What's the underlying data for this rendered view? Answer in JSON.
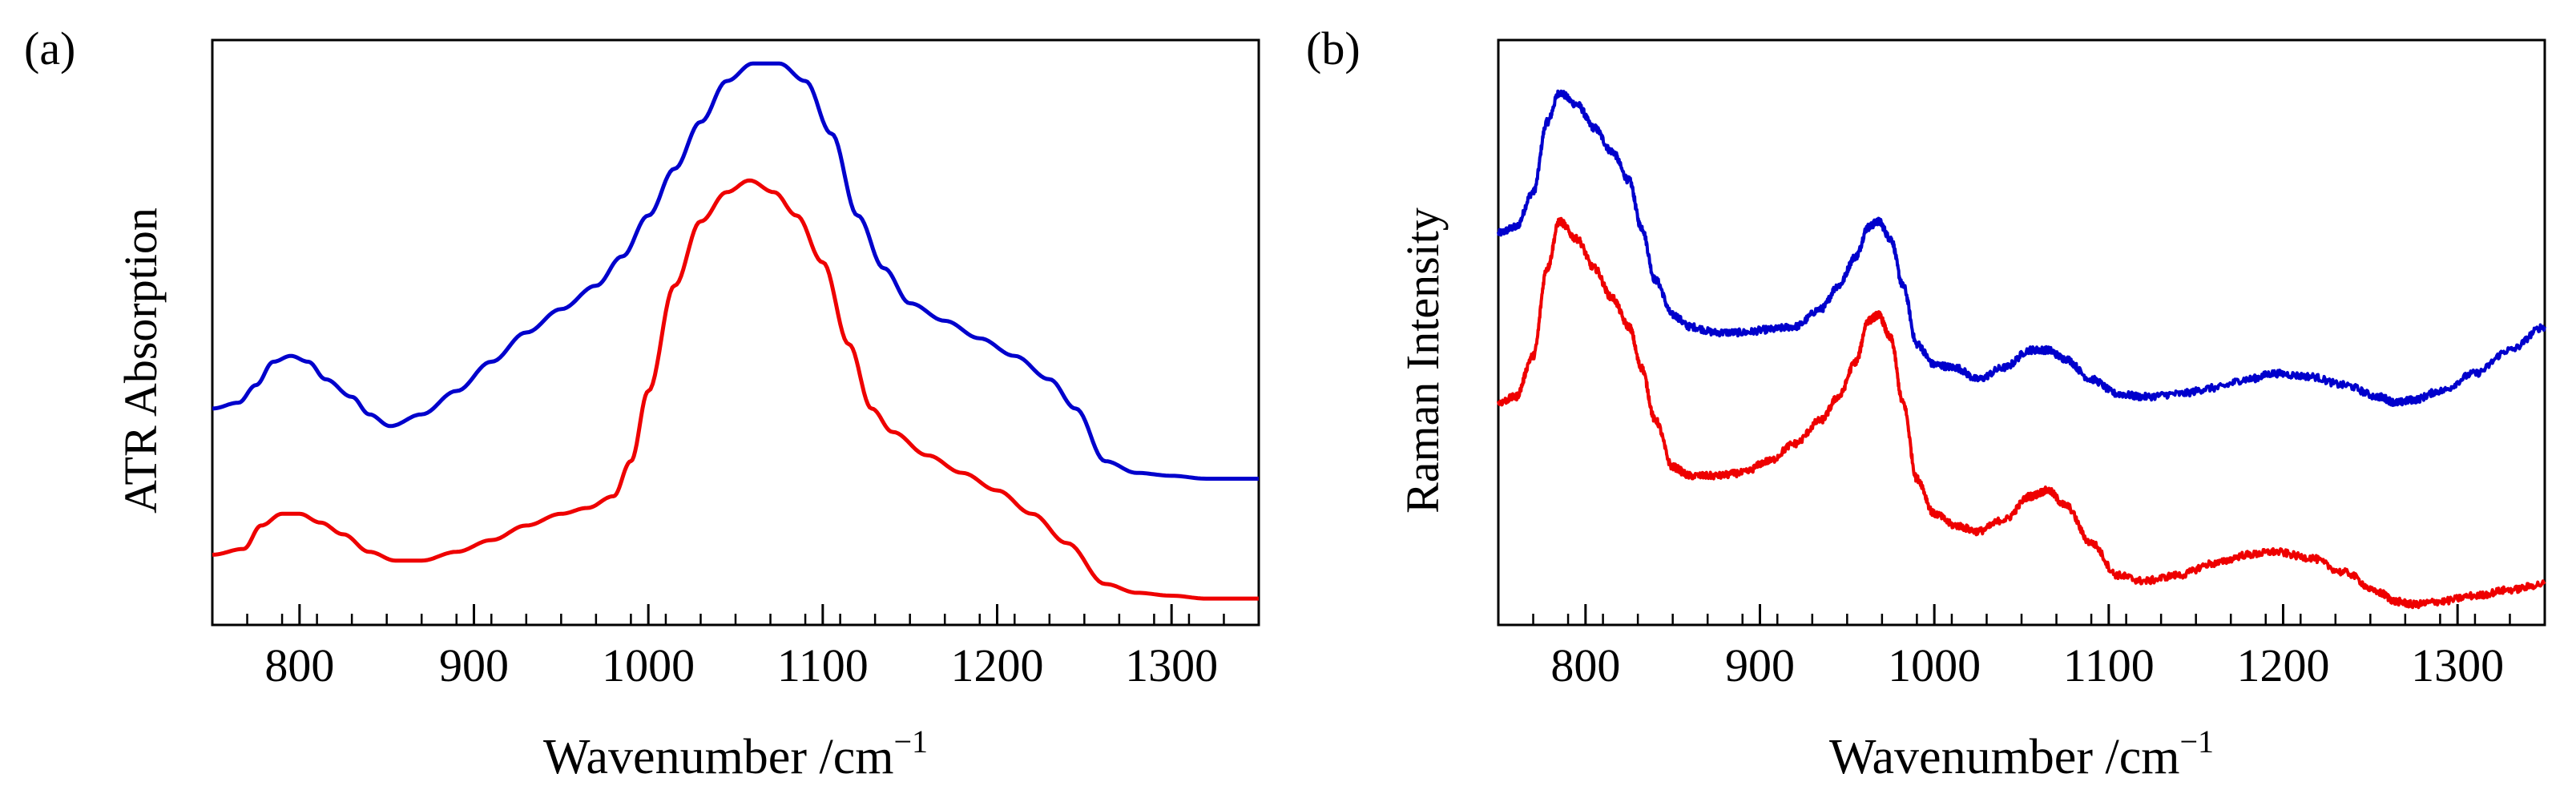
{
  "figure": {
    "panels": [
      {
        "id": "a",
        "label": "(a)",
        "ylabel": "ATR Absorption",
        "xlabel_main": "Wavenumber /cm",
        "xlabel_sup": "−1"
      },
      {
        "id": "b",
        "label": "(b)",
        "ylabel": "Raman Intensity",
        "xlabel_main": "Wavenumber /cm",
        "xlabel_sup": "−1"
      }
    ]
  },
  "chart_data": [
    {
      "type": "line",
      "panel": "a",
      "title": "",
      "xlabel": "Wavenumber /cm−1",
      "ylabel": "ATR Absorption",
      "xlim": [
        750,
        1350
      ],
      "ylim": [
        0,
        1
      ],
      "yticks_shown": false,
      "xticks_major": [
        800,
        900,
        1000,
        1100,
        1200,
        1300
      ],
      "xtick_labels": [
        "800",
        "900",
        "1000",
        "1100",
        "1200",
        "1300"
      ],
      "xticks_minor_step": 20,
      "noise": 0,
      "series": [
        {
          "name": "blue",
          "color": "#0000cc",
          "x": [
            750,
            765,
            775,
            785,
            795,
            805,
            815,
            830,
            840,
            852,
            870,
            890,
            910,
            930,
            950,
            970,
            985,
            1000,
            1015,
            1030,
            1045,
            1060,
            1075,
            1090,
            1105,
            1120,
            1135,
            1150,
            1170,
            1190,
            1210,
            1230,
            1245,
            1262,
            1280,
            1300,
            1320,
            1350
          ],
          "y": [
            0.37,
            0.38,
            0.41,
            0.45,
            0.46,
            0.45,
            0.42,
            0.39,
            0.36,
            0.34,
            0.36,
            0.4,
            0.45,
            0.5,
            0.54,
            0.58,
            0.63,
            0.7,
            0.78,
            0.86,
            0.93,
            0.96,
            0.96,
            0.93,
            0.84,
            0.7,
            0.61,
            0.55,
            0.52,
            0.49,
            0.46,
            0.42,
            0.37,
            0.28,
            0.26,
            0.255,
            0.25,
            0.25
          ]
        },
        {
          "name": "red",
          "color": "#ee0000",
          "x": [
            750,
            768,
            778,
            790,
            800,
            812,
            825,
            840,
            855,
            870,
            890,
            910,
            930,
            950,
            965,
            980,
            990,
            1000,
            1015,
            1030,
            1045,
            1058,
            1072,
            1085,
            1100,
            1115,
            1128,
            1140,
            1160,
            1180,
            1200,
            1220,
            1240,
            1262,
            1280,
            1300,
            1320,
            1350
          ],
          "y": [
            0.12,
            0.13,
            0.17,
            0.19,
            0.19,
            0.175,
            0.155,
            0.125,
            0.11,
            0.11,
            0.125,
            0.145,
            0.17,
            0.19,
            0.2,
            0.22,
            0.28,
            0.4,
            0.58,
            0.69,
            0.74,
            0.76,
            0.74,
            0.7,
            0.62,
            0.48,
            0.37,
            0.33,
            0.29,
            0.26,
            0.23,
            0.19,
            0.14,
            0.07,
            0.055,
            0.05,
            0.045,
            0.045
          ]
        }
      ]
    },
    {
      "type": "line",
      "panel": "b",
      "title": "",
      "xlabel": "Wavenumber /cm−1",
      "ylabel": "Raman Intensity",
      "xlim": [
        750,
        1350
      ],
      "ylim": [
        0,
        1
      ],
      "yticks_shown": false,
      "xticks_major": [
        800,
        900,
        1000,
        1100,
        1200,
        1300
      ],
      "xtick_labels": [
        "800",
        "900",
        "1000",
        "1100",
        "1200",
        "1300"
      ],
      "xticks_minor_step": 20,
      "noise": 0.006,
      "series": [
        {
          "name": "blue",
          "color": "#0000cc",
          "x": [
            750,
            760,
            770,
            778,
            785,
            795,
            805,
            815,
            825,
            832,
            840,
            850,
            860,
            875,
            890,
            905,
            920,
            935,
            945,
            955,
            962,
            968,
            975,
            982,
            990,
            1000,
            1012,
            1025,
            1040,
            1055,
            1065,
            1075,
            1090,
            1105,
            1120,
            1140,
            1160,
            1180,
            1195,
            1215,
            1235,
            1255,
            1265,
            1275,
            1290,
            1310,
            1330,
            1350
          ],
          "y": [
            0.67,
            0.68,
            0.74,
            0.86,
            0.91,
            0.89,
            0.85,
            0.81,
            0.76,
            0.68,
            0.59,
            0.53,
            0.51,
            0.5,
            0.5,
            0.505,
            0.51,
            0.54,
            0.58,
            0.63,
            0.68,
            0.69,
            0.66,
            0.58,
            0.48,
            0.445,
            0.44,
            0.42,
            0.44,
            0.47,
            0.47,
            0.455,
            0.42,
            0.395,
            0.39,
            0.395,
            0.405,
            0.42,
            0.43,
            0.425,
            0.41,
            0.39,
            0.38,
            0.385,
            0.4,
            0.43,
            0.47,
            0.51
          ]
        },
        {
          "name": "red",
          "color": "#ee0000",
          "x": [
            750,
            760,
            770,
            778,
            785,
            795,
            805,
            815,
            825,
            832,
            840,
            850,
            860,
            875,
            890,
            905,
            920,
            935,
            945,
            955,
            962,
            968,
            975,
            982,
            990,
            1000,
            1012,
            1025,
            1040,
            1055,
            1065,
            1075,
            1090,
            1105,
            1120,
            1140,
            1160,
            1180,
            1195,
            1215,
            1235,
            1255,
            1265,
            1275,
            1290,
            1310,
            1330,
            1350
          ],
          "y": [
            0.38,
            0.39,
            0.46,
            0.61,
            0.69,
            0.66,
            0.61,
            0.56,
            0.51,
            0.44,
            0.35,
            0.27,
            0.255,
            0.255,
            0.26,
            0.28,
            0.31,
            0.35,
            0.39,
            0.45,
            0.52,
            0.53,
            0.49,
            0.38,
            0.25,
            0.19,
            0.17,
            0.16,
            0.18,
            0.22,
            0.23,
            0.205,
            0.14,
            0.085,
            0.075,
            0.085,
            0.105,
            0.12,
            0.125,
            0.115,
            0.09,
            0.055,
            0.04,
            0.035,
            0.04,
            0.05,
            0.06,
            0.07
          ]
        }
      ]
    }
  ]
}
